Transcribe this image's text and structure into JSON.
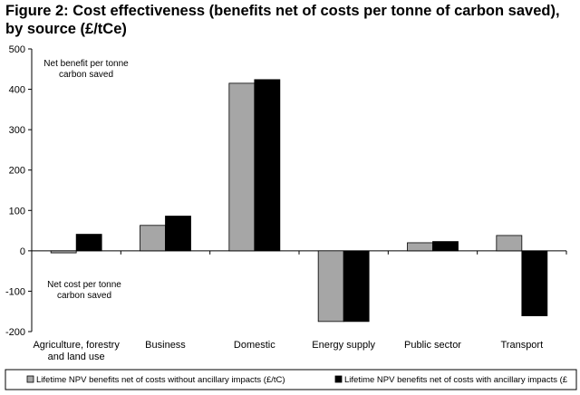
{
  "title": "Figure 2: Cost effectiveness (benefits net of costs per tonne of carbon saved), by source (£/tCe)",
  "chart_data": {
    "type": "bar",
    "categories": [
      "Agriculture, forestry and land use",
      "Business",
      "Domestic",
      "Energy supply",
      "Public sector",
      "Transport"
    ],
    "series": [
      {
        "name": "Lifetime NPV benefits net of costs without ancillary impacts (£/tC)",
        "values": [
          -5,
          63,
          415,
          -175,
          20,
          38
        ],
        "color": "#a6a6a6"
      },
      {
        "name": "Lifetime NPV benefits net of costs with ancillary impacts (£",
        "values": [
          41,
          86,
          424,
          -175,
          23,
          -161
        ],
        "color": "#000000"
      }
    ],
    "ylim": [
      -200,
      500
    ],
    "yticks": [
      -200,
      -100,
      0,
      100,
      200,
      300,
      400,
      500
    ],
    "annotations": [
      {
        "lines": [
          "Net benefit per tonne",
          "carbon saved"
        ]
      },
      {
        "lines": [
          "Net cost per tonne",
          "carbon saved"
        ]
      }
    ],
    "legend_position": "bottom",
    "grid": false
  }
}
